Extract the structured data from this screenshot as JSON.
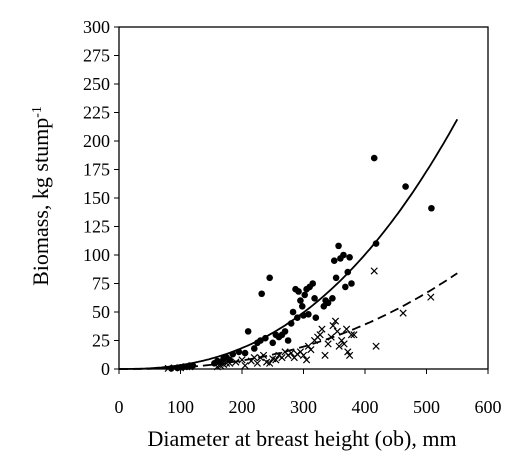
{
  "chart_data": {
    "type": "scatter",
    "title": "",
    "xlabel": "Diameter at breast height (ob), mm",
    "ylabel": "Biomass, kg stump",
    "ylabel_superscript": "-1",
    "xlim": [
      0,
      600
    ],
    "ylim": [
      0,
      300
    ],
    "xticks": [
      0,
      100,
      200,
      300,
      400,
      500,
      600
    ],
    "yticks": [
      0,
      25,
      50,
      75,
      100,
      125,
      150,
      175,
      200,
      225,
      250,
      275,
      300
    ],
    "grid": false,
    "legend": "none",
    "series": [
      {
        "marker": "filled-circle",
        "color": "#000000",
        "points": [
          [
            85,
            0.5
          ],
          [
            95,
            1
          ],
          [
            100,
            1.5
          ],
          [
            105,
            2
          ],
          [
            110,
            2
          ],
          [
            115,
            3
          ],
          [
            120,
            3
          ],
          [
            155,
            5
          ],
          [
            160,
            7
          ],
          [
            165,
            6
          ],
          [
            170,
            9
          ],
          [
            175,
            10
          ],
          [
            180,
            8
          ],
          [
            185,
            13
          ],
          [
            195,
            15
          ],
          [
            205,
            14
          ],
          [
            210,
            33
          ],
          [
            220,
            18
          ],
          [
            225,
            23
          ],
          [
            230,
            25
          ],
          [
            232,
            66
          ],
          [
            238,
            27
          ],
          [
            245,
            80
          ],
          [
            250,
            23
          ],
          [
            255,
            30
          ],
          [
            260,
            28
          ],
          [
            265,
            30
          ],
          [
            270,
            33
          ],
          [
            275,
            25
          ],
          [
            280,
            40
          ],
          [
            283,
            50
          ],
          [
            287,
            70
          ],
          [
            290,
            45
          ],
          [
            292,
            68
          ],
          [
            295,
            60
          ],
          [
            298,
            55
          ],
          [
            300,
            47
          ],
          [
            302,
            65
          ],
          [
            305,
            70
          ],
          [
            308,
            48
          ],
          [
            310,
            72
          ],
          [
            315,
            75
          ],
          [
            318,
            62
          ],
          [
            320,
            45
          ],
          [
            333,
            55
          ],
          [
            336,
            60
          ],
          [
            340,
            58
          ],
          [
            347,
            62
          ],
          [
            350,
            95
          ],
          [
            353,
            80
          ],
          [
            357,
            108
          ],
          [
            360,
            97
          ],
          [
            365,
            100
          ],
          [
            368,
            72
          ],
          [
            372,
            85
          ],
          [
            375,
            98
          ],
          [
            378,
            75
          ],
          [
            415,
            185
          ],
          [
            418,
            110
          ],
          [
            466,
            160
          ],
          [
            508,
            141
          ]
        ]
      },
      {
        "marker": "x",
        "color": "#000000",
        "points": [
          [
            80,
            0.5
          ],
          [
            90,
            1
          ],
          [
            100,
            1
          ],
          [
            110,
            2
          ],
          [
            115,
            2
          ],
          [
            160,
            2
          ],
          [
            165,
            3
          ],
          [
            170,
            4
          ],
          [
            175,
            5
          ],
          [
            180,
            5
          ],
          [
            190,
            6
          ],
          [
            200,
            8
          ],
          [
            205,
            3
          ],
          [
            215,
            7
          ],
          [
            220,
            10
          ],
          [
            225,
            5
          ],
          [
            230,
            10
          ],
          [
            235,
            12
          ],
          [
            240,
            6
          ],
          [
            245,
            5
          ],
          [
            250,
            9
          ],
          [
            255,
            8
          ],
          [
            260,
            12
          ],
          [
            265,
            10
          ],
          [
            270,
            15
          ],
          [
            275,
            12
          ],
          [
            280,
            14
          ],
          [
            285,
            10
          ],
          [
            290,
            13
          ],
          [
            295,
            15
          ],
          [
            300,
            12
          ],
          [
            305,
            8
          ],
          [
            308,
            20
          ],
          [
            312,
            17
          ],
          [
            318,
            25
          ],
          [
            323,
            28
          ],
          [
            327,
            30
          ],
          [
            330,
            35
          ],
          [
            335,
            12
          ],
          [
            340,
            22
          ],
          [
            345,
            28
          ],
          [
            348,
            38
          ],
          [
            352,
            42
          ],
          [
            355,
            33
          ],
          [
            358,
            20
          ],
          [
            362,
            25
          ],
          [
            366,
            22
          ],
          [
            370,
            35
          ],
          [
            372,
            15
          ],
          [
            375,
            12
          ],
          [
            378,
            30
          ],
          [
            382,
            30
          ],
          [
            415,
            86
          ],
          [
            418,
            20
          ],
          [
            462,
            49
          ],
          [
            507,
            63
          ]
        ]
      }
    ],
    "fit_lines": [
      {
        "style": "solid",
        "color": "#000000",
        "x": [
          0,
          550
        ],
        "y_at_max": 219,
        "exponent": 2.45
      },
      {
        "style": "dashed",
        "color": "#000000",
        "x": [
          0,
          550
        ],
        "y_at_max": 84,
        "exponent": 2.4
      }
    ]
  }
}
